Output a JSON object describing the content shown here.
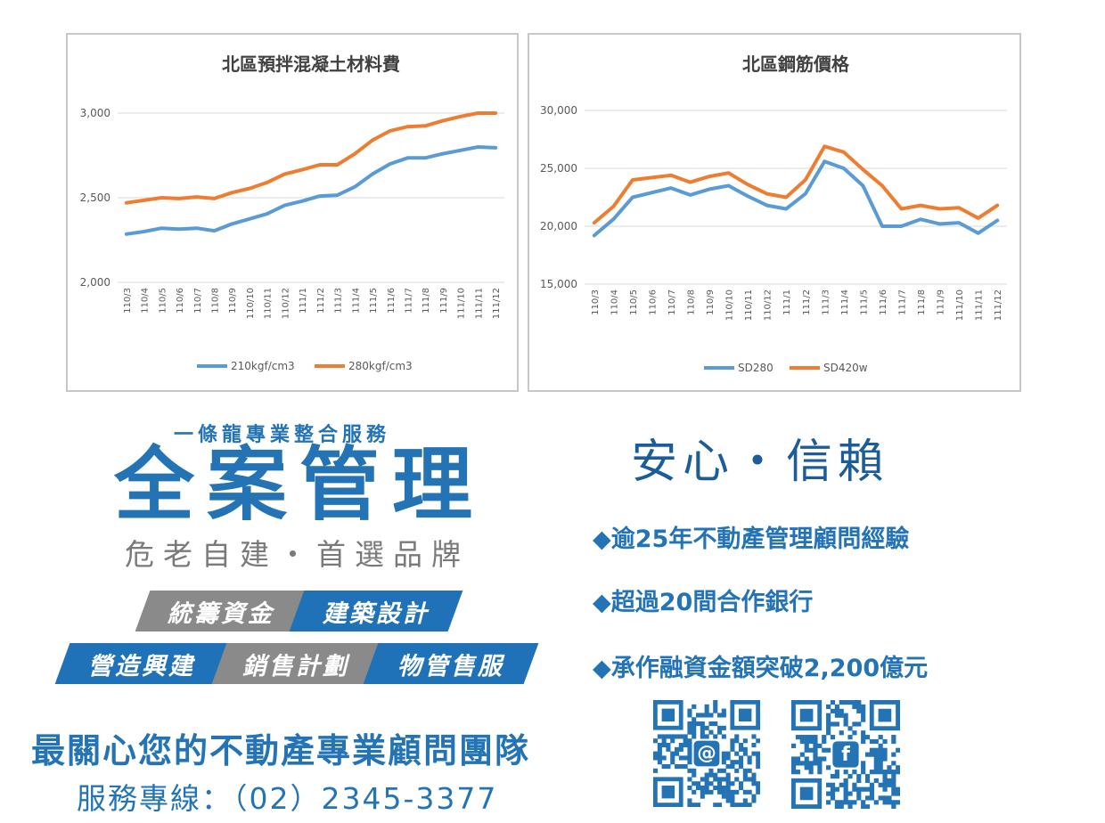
{
  "chart_data": [
    {
      "type": "line",
      "title": "北區預拌混凝土材料費",
      "categories": [
        "110/3",
        "110/4",
        "110/5",
        "110/6",
        "110/7",
        "110/8",
        "110/9",
        "110/10",
        "110/11",
        "110/12",
        "111/1",
        "111/2",
        "111/3",
        "111/4",
        "111/5",
        "111/6",
        "111/7",
        "111/8",
        "111/9",
        "111/10",
        "111/11",
        "111/12"
      ],
      "ylim": [
        2000,
        3000
      ],
      "yticks": [
        "2,000",
        "2,500",
        "3,000"
      ],
      "grid": true,
      "legend_position": "bottom",
      "series": [
        {
          "name": "210kgf/cm3",
          "color": "#5b9bd5",
          "values": [
            2285,
            2300,
            2320,
            2315,
            2320,
            2305,
            2345,
            2375,
            2405,
            2455,
            2480,
            2510,
            2515,
            2565,
            2640,
            2700,
            2735,
            2735,
            2760,
            2780,
            2800,
            2795
          ]
        },
        {
          "name": "280kgf/cm3",
          "color": "#ed7d31",
          "values": [
            2470,
            2485,
            2500,
            2495,
            2505,
            2495,
            2530,
            2555,
            2590,
            2640,
            2665,
            2695,
            2695,
            2760,
            2840,
            2895,
            2920,
            2925,
            2955,
            2980,
            3000,
            3000
          ]
        }
      ]
    },
    {
      "type": "line",
      "title": "北區鋼筋價格",
      "categories": [
        "110/3",
        "110/4",
        "110/5",
        "110/6",
        "110/7",
        "110/8",
        "110/9",
        "110/10",
        "110/11",
        "110/12",
        "111/1",
        "111/2",
        "111/3",
        "111/4",
        "111/5",
        "111/6",
        "111/7",
        "111/8",
        "111/9",
        "111/10",
        "111/11",
        "111/12"
      ],
      "ylim": [
        15000,
        30000
      ],
      "yticks": [
        "15,000",
        "20,000",
        "25,000",
        "30,000"
      ],
      "grid": true,
      "legend_position": "bottom",
      "series": [
        {
          "name": "SD280",
          "color": "#5b9bd5",
          "values": [
            19200,
            20600,
            22500,
            22900,
            23300,
            22700,
            23200,
            23500,
            22600,
            21800,
            21500,
            22800,
            25600,
            25000,
            23500,
            20000,
            20000,
            20600,
            20200,
            20300,
            19400,
            20500
          ]
        },
        {
          "name": "SD420w",
          "color": "#ed7d31",
          "values": [
            20300,
            21700,
            24000,
            24200,
            24400,
            23800,
            24300,
            24600,
            23600,
            22800,
            22500,
            24000,
            26900,
            26400,
            24900,
            23500,
            21500,
            21800,
            21500,
            21600,
            20700,
            21800
          ]
        }
      ]
    }
  ],
  "colors": {
    "brand_blue": "#2474b5",
    "gray": "#8a8a8a"
  },
  "promo": {
    "tagline": "一條龍專業整合服務",
    "title": "全案管理",
    "subtitle": "危老自建・首選品牌",
    "services_row1": [
      "統籌資金",
      "建築設計"
    ],
    "services_row2": [
      "營造興建",
      "銷售計劃",
      "物管售服"
    ],
    "slogan": "最關心您的不動產專業顧問團隊",
    "hotline": "服務專線：（02）2345-3377"
  },
  "trust": {
    "motto": "安心・信賴",
    "bullets": [
      "◆逾25年不動產管理顧問經驗",
      "◆超過20間合作銀行",
      "◆承作融資金額突破2,200億元"
    ],
    "qr_codes": [
      {
        "icon": "email-icon",
        "glyph": "@"
      },
      {
        "icon": "facebook-icon",
        "glyph": "f"
      }
    ]
  }
}
